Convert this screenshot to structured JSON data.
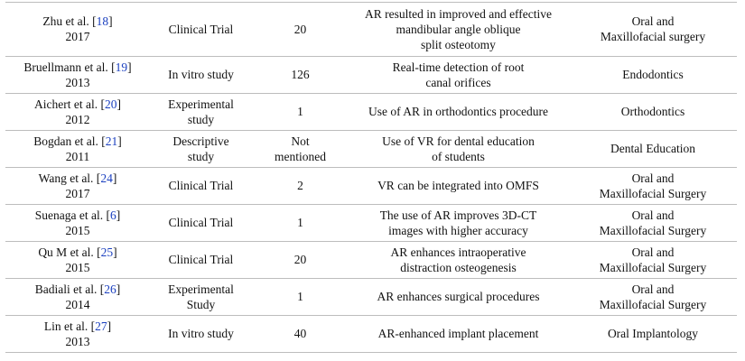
{
  "table": {
    "rows": [
      {
        "author": [
          "Zhu et al. [",
          "18",
          "]"
        ],
        "year": "2017",
        "type": [
          "Clinical Trial"
        ],
        "sample": [
          "20"
        ],
        "finding": [
          "AR resulted in improved and effective",
          "mandibular angle oblique",
          "split osteotomy"
        ],
        "field": [
          "Oral and",
          "Maxillofacial surgery"
        ]
      },
      {
        "author": [
          "Bruellmann et al. [",
          "19",
          "]"
        ],
        "year": "2013",
        "type": [
          "In vitro study"
        ],
        "sample": [
          "126"
        ],
        "finding": [
          "Real-time detection of root",
          "canal orifices"
        ],
        "field": [
          "Endodontics"
        ]
      },
      {
        "author": [
          "Aichert et al. [",
          "20",
          "]"
        ],
        "year": "2012",
        "type": [
          "Experimental",
          "study"
        ],
        "sample": [
          "1"
        ],
        "finding": [
          "Use of AR in orthodontics procedure"
        ],
        "field": [
          "Orthodontics"
        ]
      },
      {
        "author": [
          "Bogdan et al. [",
          "21",
          "]"
        ],
        "year": "2011",
        "type": [
          "Descriptive",
          "study"
        ],
        "sample": [
          "Not",
          "mentioned"
        ],
        "finding": [
          "Use of VR for dental education",
          "of students"
        ],
        "field": [
          "Dental Education"
        ]
      },
      {
        "author": [
          "Wang et al. [",
          "24",
          "]"
        ],
        "year": "2017",
        "type": [
          "Clinical Trial"
        ],
        "sample": [
          "2"
        ],
        "finding": [
          "VR can be integrated into OMFS"
        ],
        "field": [
          "Oral and",
          "Maxillofacial Surgery"
        ]
      },
      {
        "author": [
          "Suenaga et al. [",
          "6",
          "]"
        ],
        "year": "2015",
        "type": [
          "Clinical Trial"
        ],
        "sample": [
          "1"
        ],
        "finding": [
          "The use of AR improves 3D-CT",
          "images with higher accuracy"
        ],
        "field": [
          "Oral and",
          "Maxillofacial Surgery"
        ]
      },
      {
        "author": [
          "Qu M et al. [",
          "25",
          "]"
        ],
        "year": "2015",
        "type": [
          "Clinical Trial"
        ],
        "sample": [
          "20"
        ],
        "finding": [
          "AR enhances intraoperative",
          "distraction osteogenesis"
        ],
        "field": [
          "Oral and",
          "Maxillofacial Surgery"
        ]
      },
      {
        "author": [
          "Badiali et al. [",
          "26",
          "]"
        ],
        "year": "2014",
        "type": [
          "Experimental",
          "Study"
        ],
        "sample": [
          "1"
        ],
        "finding": [
          "AR enhances surgical procedures"
        ],
        "field": [
          "Oral and",
          "Maxillofacial Surgery"
        ]
      },
      {
        "author": [
          "Lin et al. [",
          "27",
          "]"
        ],
        "year": "2013",
        "type": [
          "In vitro study"
        ],
        "sample": [
          "40"
        ],
        "finding": [
          "AR-enhanced implant placement"
        ],
        "field": [
          "Oral Implantology"
        ]
      }
    ]
  }
}
